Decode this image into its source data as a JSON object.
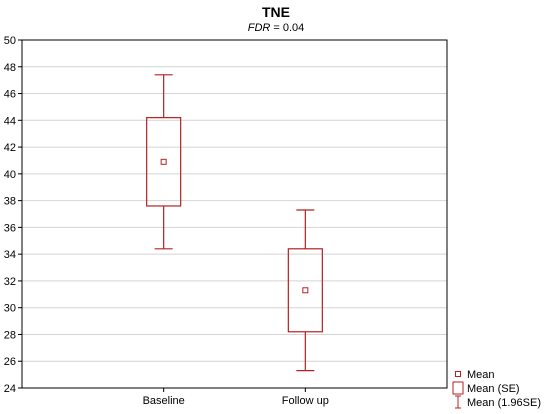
{
  "chart_data": {
    "type": "box",
    "title": "TNE",
    "subtitle": {
      "variable": "FDR",
      "rest": " = 0.04"
    },
    "xlabel": "",
    "ylabel": "",
    "categories": [
      "Baseline",
      "Follow up"
    ],
    "ylim": [
      24,
      50
    ],
    "yticks": [
      24,
      26,
      28,
      30,
      32,
      34,
      36,
      38,
      40,
      42,
      44,
      46,
      48,
      50
    ],
    "grid": true,
    "series": [
      {
        "category": "Baseline",
        "mean": 40.9,
        "se_low": 37.6,
        "se_high": 44.2,
        "ci_low": 34.4,
        "ci_high": 47.4
      },
      {
        "category": "Follow up",
        "mean": 31.3,
        "se_low": 28.2,
        "se_high": 34.4,
        "ci_low": 25.3,
        "ci_high": 37.3
      }
    ],
    "legend": {
      "position": "bottom-right",
      "entries": [
        "Mean",
        "Mean (SE)",
        "Mean (1.96SE)"
      ]
    },
    "color": "#b22222"
  }
}
